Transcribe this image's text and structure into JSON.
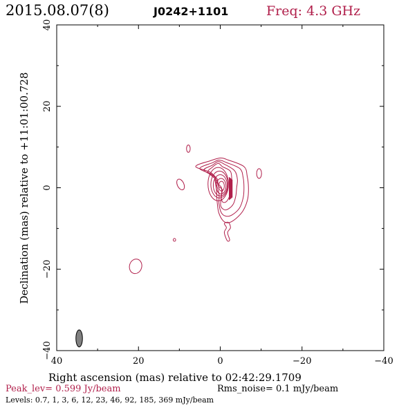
{
  "header": {
    "date": "2015.08.07(8)",
    "source": "J0242+1101",
    "freq": "Freq: 4.3 GHz"
  },
  "chart_data": {
    "type": "contour",
    "title": "",
    "xlabel": "Right ascension (mas) relative to 02:42:29.1709",
    "ylabel": "Declination (mas) relative to +11:01:00.728",
    "xlim": [
      40,
      -40
    ],
    "ylim": [
      -40,
      40
    ],
    "xticks": [
      40,
      20,
      0,
      -20,
      -40
    ],
    "yticks": [
      40,
      20,
      0,
      -20,
      -40
    ],
    "xtick_labels": [
      "40",
      "20",
      "0",
      "−20",
      "−40"
    ],
    "ytick_labels": [
      "40",
      "20",
      "0",
      "−20",
      "−40"
    ],
    "peak_level": "Peak_lev=  0.599 Jy/beam",
    "rms_noise": "Rms_noise=  0.1 mJy/beam",
    "levels_text": "Levels: 0.7,   1,   3,   6,  12,  23,  46,  92, 185, 369 mJy/beam",
    "levels_mJy": [
      0.7,
      1,
      3,
      6,
      12,
      23,
      46,
      92,
      185,
      369
    ],
    "peak_position_mas": [
      0,
      0
    ],
    "beam": {
      "center_mas": [
        34.5,
        -37
      ],
      "major_mas": 4.2,
      "minor_mas": 1.6,
      "pa_deg": 0
    },
    "contour_color": "#b01e4a",
    "beam_color": "#808080",
    "main_component": {
      "rings": [
        {
          "cx": -0.3,
          "cy": 0.4,
          "rx": 0.7,
          "ry": 1.2
        },
        {
          "cx": -0.2,
          "cy": 0.4,
          "rx": 1.2,
          "ry": 1.9
        },
        {
          "cx": 0.0,
          "cy": 0.6,
          "rx": 1.7,
          "ry": 2.6
        },
        {
          "cx": 0.2,
          "cy": 0.8,
          "rx": 2.1,
          "ry": 3.3
        },
        {
          "cx": 0.5,
          "cy": 0.9,
          "rx": 2.5,
          "ry": 4.1
        }
      ],
      "outer": [
        [
          [
            1,
            2
          ],
          [
            3,
            3.8
          ],
          [
            2,
            5
          ],
          [
            0.5,
            6
          ],
          [
            -0.5,
            5.2
          ],
          [
            -2.5,
            4
          ],
          [
            -2.8,
            1.5
          ],
          [
            -2.6,
            -0.5
          ],
          [
            -2.3,
            -2
          ],
          [
            -1.5,
            -3.4
          ],
          [
            -0.6,
            -3.5
          ],
          [
            -0.2,
            -2.2
          ],
          [
            -0.5,
            -0.5
          ],
          [
            0.5,
            0.5
          ]
        ],
        [
          [
            1,
            2.5
          ],
          [
            4,
            4.3
          ],
          [
            2,
            5.5
          ],
          [
            0.5,
            6.4
          ],
          [
            -1,
            5.8
          ],
          [
            -3.5,
            4.2
          ],
          [
            -4.2,
            2
          ],
          [
            -4,
            0
          ],
          [
            -3.8,
            -2
          ],
          [
            -3.2,
            -4
          ],
          [
            -2,
            -5.2
          ],
          [
            -1,
            -5.4
          ],
          [
            -0.1,
            -4.4
          ],
          [
            -0.3,
            -2
          ],
          [
            -0.3,
            0
          ],
          [
            0.5,
            1
          ]
        ],
        [
          [
            1.5,
            3
          ],
          [
            5,
            4.7
          ],
          [
            2,
            6.1
          ],
          [
            0.3,
            6.8
          ],
          [
            -1.5,
            6.2
          ],
          [
            -4.8,
            4.7
          ],
          [
            -5.6,
            2.5
          ],
          [
            -5.8,
            0
          ],
          [
            -5.6,
            -2.5
          ],
          [
            -4.7,
            -5
          ],
          [
            -3,
            -6.6
          ],
          [
            -1.5,
            -7
          ],
          [
            -0.3,
            -6.2
          ],
          [
            0.3,
            -4
          ],
          [
            0.3,
            -1.5
          ],
          [
            1,
            1
          ]
        ],
        [
          [
            2,
            3.5
          ],
          [
            6,
            5.2
          ],
          [
            2.5,
            6.6
          ],
          [
            0,
            7.3
          ],
          [
            -2,
            6.8
          ],
          [
            -5.8,
            5.2
          ],
          [
            -6.6,
            2.8
          ],
          [
            -6.9,
            0
          ],
          [
            -6.7,
            -2.8
          ],
          [
            -5.6,
            -5.6
          ],
          [
            -3.8,
            -7.6
          ],
          [
            -2,
            -8.6
          ],
          [
            -0.7,
            -8.1
          ],
          [
            0.4,
            -6
          ],
          [
            0.8,
            -3
          ],
          [
            1,
            0
          ]
        ]
      ],
      "tail": [
        [
          -1,
          -8.8
        ],
        [
          -1.5,
          -9.8
        ],
        [
          -1,
          -11
        ],
        [
          -1.7,
          -13
        ],
        [
          -2.3,
          -12.8
        ],
        [
          -1.8,
          -11
        ],
        [
          -2.5,
          -9.8
        ],
        [
          -2,
          -8.5
        ]
      ]
    },
    "blobs": [
      {
        "cx": 9.7,
        "cy": 0.8,
        "rx": 0.8,
        "ry": 1.4,
        "rot": -25
      },
      {
        "cx": 7.8,
        "cy": 9.6,
        "rx": 0.45,
        "ry": 0.9,
        "rot": 0
      },
      {
        "cx": -9.5,
        "cy": 3.5,
        "rx": 0.6,
        "ry": 1.2,
        "rot": 0
      },
      {
        "cx": 11.2,
        "cy": -12.8,
        "rx": 0.3,
        "ry": 0.35,
        "rot": 0
      },
      {
        "cx": 20.7,
        "cy": -19.3,
        "rx": 1.5,
        "ry": 1.8,
        "rot": 15
      }
    ]
  }
}
